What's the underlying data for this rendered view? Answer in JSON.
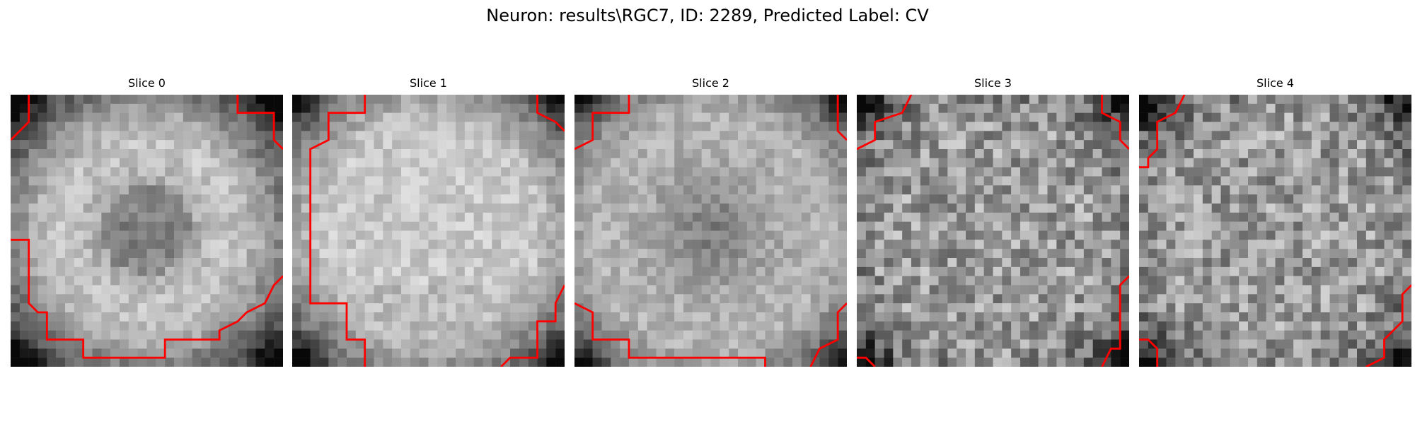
{
  "figure": {
    "title": "Neuron: results\\RGC7, ID: 2289, Predicted Label: CV",
    "colors": {
      "contour": "#ff0000",
      "background": "#ffffff"
    },
    "slices": [
      {
        "label": "Slice 0"
      },
      {
        "label": "Slice 1"
      },
      {
        "label": "Slice 2"
      },
      {
        "label": "Slice 3"
      },
      {
        "label": "Slice 4"
      }
    ]
  }
}
